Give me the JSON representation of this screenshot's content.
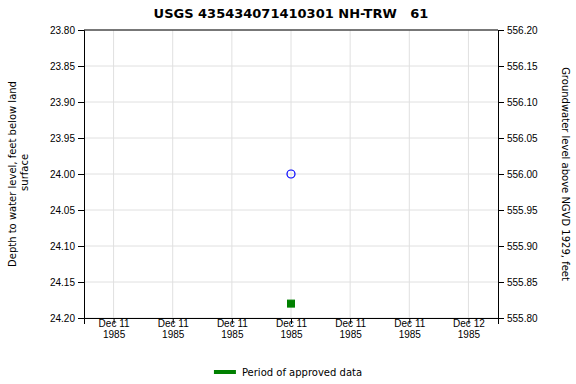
{
  "chart_data": {
    "type": "scatter",
    "title": "USGS 435434071410301 NH-TRW   61",
    "y_label": "Depth to water level, feet below land\n surface",
    "y2_label": "Groundwater level above NGVD 1929, feet",
    "categories": [
      "Dec 11\n1985",
      "Dec 11\n1985",
      "Dec 11\n1985",
      "Dec 11\n1985",
      "Dec 11\n1985",
      "Dec 11\n1985",
      "Dec 12\n1985"
    ],
    "series": [
      {
        "color": "blue",
        "marker": "circle-open",
        "values": [
          null,
          null,
          null,
          24.0,
          null,
          null,
          null
        ]
      },
      {
        "name": "Period of approved data",
        "color": "green",
        "marker": "square",
        "values": [
          null,
          null,
          null,
          24.18,
          null,
          null,
          null
        ]
      }
    ],
    "ylim": [
      24.2,
      23.8
    ],
    "yticks": [
      {
        "value": 23.8,
        "label": "23.80"
      },
      {
        "value": 23.85,
        "label": "23.85"
      },
      {
        "value": 23.9,
        "label": "23.90"
      },
      {
        "value": 23.95,
        "label": "23.95"
      },
      {
        "value": 24.0,
        "label": "24.00"
      },
      {
        "value": 24.05,
        "label": "24.05"
      },
      {
        "value": 24.1,
        "label": "24.10"
      },
      {
        "value": 24.15,
        "label": "24.15"
      },
      {
        "value": 24.2,
        "label": "24.20"
      }
    ],
    "y2lim": [
      555.8,
      556.2
    ],
    "y2ticks": [
      {
        "value": 556.2,
        "label": "556.20"
      },
      {
        "value": 556.15,
        "label": "556.15"
      },
      {
        "value": 556.1,
        "label": "556.10"
      },
      {
        "value": 556.05,
        "label": "556.05"
      },
      {
        "value": 556.0,
        "label": "556.00"
      },
      {
        "value": 555.95,
        "label": "555.95"
      },
      {
        "value": 555.9,
        "label": "555.90"
      },
      {
        "value": 555.85,
        "label": "555.85"
      },
      {
        "value": 555.8,
        "label": "555.80"
      }
    ],
    "grid": true,
    "legend": "bottom"
  }
}
